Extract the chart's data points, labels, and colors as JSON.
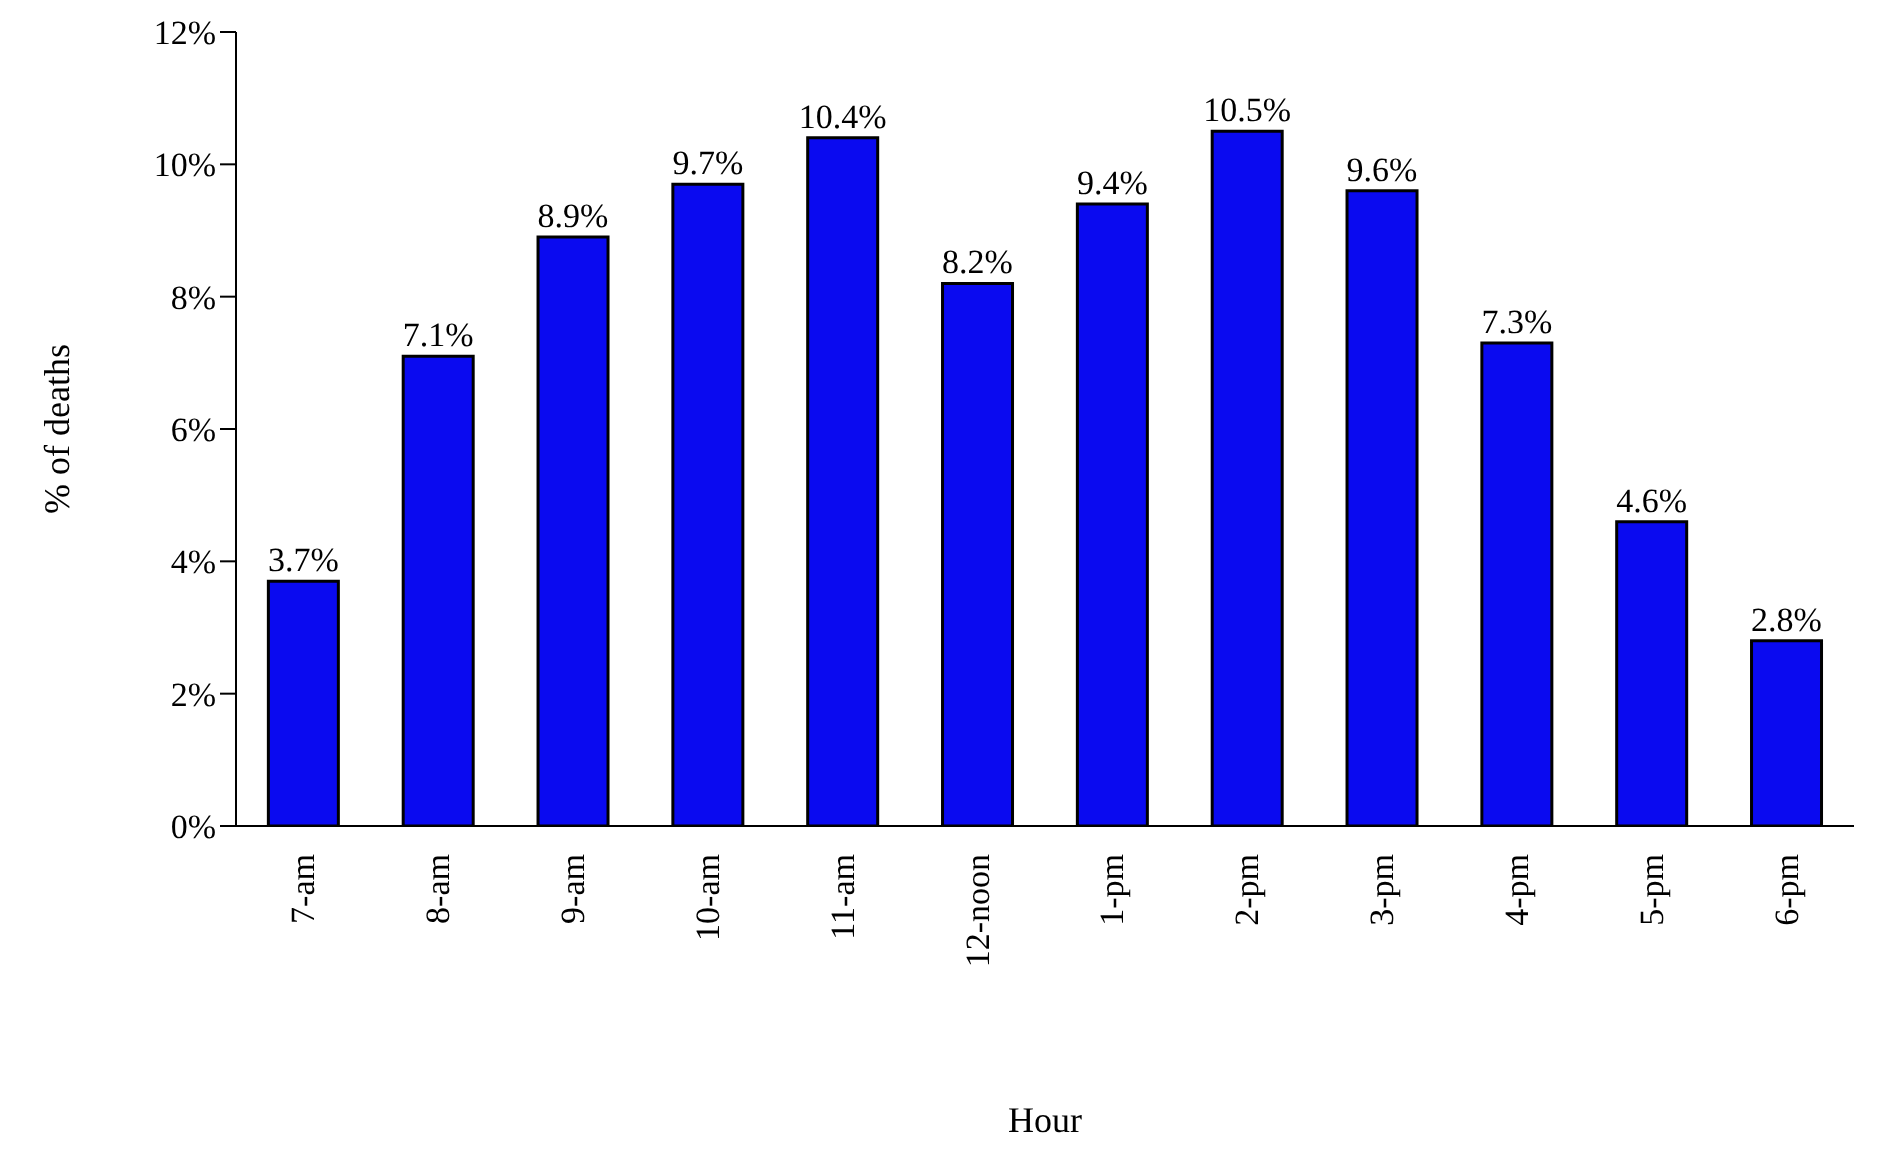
{
  "chart_data": {
    "type": "bar",
    "xlabel": "Hour",
    "ylabel": "% of deaths",
    "categories": [
      "7-am",
      "8-am",
      "9-am",
      "10-am",
      "11-am",
      "12-noon",
      "1-pm",
      "2-pm",
      "3-pm",
      "4-pm",
      "5-pm",
      "6-pm"
    ],
    "values": [
      3.7,
      7.1,
      8.9,
      9.7,
      10.4,
      8.2,
      9.4,
      10.5,
      9.6,
      7.3,
      4.6,
      2.8
    ],
    "value_labels": [
      "3.7%",
      "7.1%",
      "8.9%",
      "9.7%",
      "10.4%",
      "8.2%",
      "9.4%",
      "10.5%",
      "9.6%",
      "7.3%",
      "4.6%",
      "2.8%"
    ],
    "color": "#0a0af0",
    "ylim": [
      0,
      12
    ],
    "yticks": [
      {
        "value": 0,
        "label": "0%"
      },
      {
        "value": 2,
        "label": "2%"
      },
      {
        "value": 4,
        "label": "4%"
      },
      {
        "value": 6,
        "label": "6%"
      },
      {
        "value": 8,
        "label": "8%"
      },
      {
        "value": 10,
        "label": "10%"
      },
      {
        "value": 12,
        "label": "12%"
      }
    ],
    "grid": false,
    "legend": false
  }
}
